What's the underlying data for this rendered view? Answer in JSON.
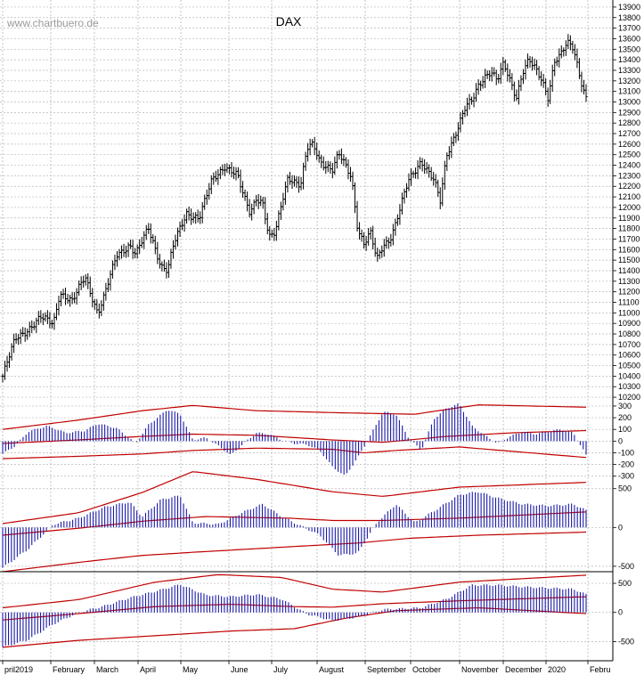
{
  "title": "DAX",
  "watermark": "www.chartbuero.de",
  "colors": {
    "price": "#000000",
    "histogram": "#1a1aa8",
    "band": "#c00000",
    "grid": "#b8b8b8"
  },
  "chart_data": [
    {
      "type": "ohlc",
      "name": "DAX",
      "ylim": [
        10150,
        13950
      ],
      "yticks": [
        10200,
        10300,
        10400,
        10500,
        10600,
        10700,
        10800,
        10900,
        11000,
        11100,
        11200,
        11300,
        11400,
        11500,
        11600,
        11700,
        11800,
        11900,
        12000,
        12100,
        12200,
        12300,
        12400,
        12500,
        12600,
        12700,
        12800,
        12900,
        13000,
        13100,
        13200,
        13300,
        13400,
        13500,
        13600,
        13700,
        13800,
        13900
      ],
      "months": [
        "pril2019",
        "February",
        "March",
        "April",
        "May",
        "June",
        "July",
        "August",
        "September",
        "October",
        "November",
        "December",
        "2020",
        "Febru"
      ],
      "close_points": [
        [
          0,
          10400
        ],
        [
          2,
          10750
        ],
        [
          4,
          10850
        ],
        [
          6,
          10950
        ],
        [
          8,
          10900
        ],
        [
          9,
          11200
        ],
        [
          11,
          11100
        ],
        [
          13,
          11350
        ],
        [
          15,
          11000
        ],
        [
          16,
          11150
        ],
        [
          18,
          11550
        ],
        [
          20,
          11650
        ],
        [
          21,
          11550
        ],
        [
          23,
          11800
        ],
        [
          25,
          11450
        ],
        [
          26,
          11400
        ],
        [
          27,
          11650
        ],
        [
          29,
          11950
        ],
        [
          31,
          11900
        ],
        [
          33,
          12250
        ],
        [
          35,
          12400
        ],
        [
          36,
          12350
        ],
        [
          37,
          12300
        ],
        [
          38,
          12100
        ],
        [
          39,
          11950
        ],
        [
          40,
          12100
        ],
        [
          41,
          12050
        ],
        [
          42,
          11700
        ],
        [
          43,
          11750
        ],
        [
          44,
          12050
        ],
        [
          45,
          12300
        ],
        [
          47,
          12200
        ],
        [
          48,
          12550
        ],
        [
          49,
          12600
        ],
        [
          50,
          12450
        ],
        [
          52,
          12350
        ],
        [
          53,
          12500
        ],
        [
          54,
          12400
        ],
        [
          55,
          12300
        ],
        [
          56,
          11800
        ],
        [
          57,
          11650
        ],
        [
          58,
          11750
        ],
        [
          59,
          11500
        ],
        [
          60,
          11650
        ],
        [
          61,
          11700
        ],
        [
          62,
          11850
        ],
        [
          63,
          12050
        ],
        [
          64,
          12250
        ],
        [
          65,
          12350
        ],
        [
          66,
          12450
        ],
        [
          67,
          12350
        ],
        [
          68,
          12250
        ],
        [
          69,
          12050
        ],
        [
          70,
          12500
        ],
        [
          71,
          12650
        ],
        [
          72,
          12800
        ],
        [
          73,
          12950
        ],
        [
          74,
          13000
        ],
        [
          75,
          13150
        ],
        [
          76,
          13250
        ],
        [
          77,
          13300
        ],
        [
          78,
          13200
        ],
        [
          79,
          13350
        ],
        [
          80,
          13200
        ],
        [
          81,
          13050
        ],
        [
          82,
          13300
        ],
        [
          83,
          13400
        ],
        [
          84,
          13300
        ],
        [
          85,
          13200
        ],
        [
          86,
          13050
        ],
        [
          87,
          13400
        ],
        [
          88,
          13450
        ],
        [
          89,
          13550
        ],
        [
          90,
          13500
        ],
        [
          91,
          13250
        ],
        [
          92,
          13050
        ]
      ]
    },
    {
      "type": "histogram",
      "name": "oscillator-1",
      "ylim": [
        -340,
        330
      ],
      "yticks": [
        300,
        200,
        100,
        0,
        -100,
        -200,
        -300
      ],
      "band_upper": [
        [
          0,
          100
        ],
        [
          12,
          180
        ],
        [
          22,
          260
        ],
        [
          30,
          305
        ],
        [
          40,
          260
        ],
        [
          55,
          240
        ],
        [
          65,
          230
        ],
        [
          75,
          310
        ],
        [
          92,
          290
        ]
      ],
      "band_mid": [
        [
          0,
          -20
        ],
        [
          12,
          10
        ],
        [
          22,
          40
        ],
        [
          30,
          60
        ],
        [
          40,
          50
        ],
        [
          52,
          10
        ],
        [
          60,
          -10
        ],
        [
          70,
          40
        ],
        [
          80,
          70
        ],
        [
          92,
          90
        ]
      ],
      "band_lower": [
        [
          0,
          -150
        ],
        [
          12,
          -130
        ],
        [
          22,
          -110
        ],
        [
          30,
          -80
        ],
        [
          40,
          -60
        ],
        [
          52,
          -70
        ],
        [
          57,
          -100
        ],
        [
          62,
          -80
        ],
        [
          72,
          -50
        ],
        [
          92,
          -140
        ]
      ],
      "histogram_points": [
        [
          0,
          -110
        ],
        [
          2,
          -40
        ],
        [
          4,
          80
        ],
        [
          7,
          130
        ],
        [
          10,
          70
        ],
        [
          13,
          90
        ],
        [
          15,
          150
        ],
        [
          18,
          110
        ],
        [
          21,
          -20
        ],
        [
          23,
          140
        ],
        [
          26,
          270
        ],
        [
          28,
          230
        ],
        [
          30,
          10
        ],
        [
          32,
          30
        ],
        [
          34,
          -40
        ],
        [
          36,
          -120
        ],
        [
          38,
          -20
        ],
        [
          40,
          70
        ],
        [
          42,
          60
        ],
        [
          44,
          10
        ],
        [
          46,
          -20
        ],
        [
          48,
          -30
        ],
        [
          50,
          -80
        ],
        [
          52,
          -220
        ],
        [
          54,
          -300
        ],
        [
          56,
          -140
        ],
        [
          58,
          50
        ],
        [
          60,
          250
        ],
        [
          62,
          230
        ],
        [
          64,
          30
        ],
        [
          66,
          -80
        ],
        [
          68,
          190
        ],
        [
          70,
          280
        ],
        [
          72,
          320
        ],
        [
          74,
          130
        ],
        [
          76,
          50
        ],
        [
          78,
          -20
        ],
        [
          80,
          40
        ],
        [
          82,
          80
        ],
        [
          84,
          60
        ],
        [
          86,
          80
        ],
        [
          88,
          100
        ],
        [
          90,
          70
        ],
        [
          92,
          -120
        ]
      ]
    },
    {
      "type": "histogram",
      "name": "oscillator-2",
      "ylim": [
        -570,
        600
      ],
      "yticks": [
        500,
        0,
        -500
      ],
      "band_upper": [
        [
          0,
          50
        ],
        [
          12,
          190
        ],
        [
          22,
          450
        ],
        [
          30,
          720
        ],
        [
          40,
          620
        ],
        [
          52,
          460
        ],
        [
          60,
          400
        ],
        [
          72,
          520
        ],
        [
          92,
          580
        ]
      ],
      "band_mid": [
        [
          0,
          -100
        ],
        [
          12,
          -10
        ],
        [
          22,
          80
        ],
        [
          32,
          140
        ],
        [
          45,
          120
        ],
        [
          52,
          90
        ],
        [
          60,
          90
        ],
        [
          72,
          120
        ],
        [
          92,
          200
        ]
      ],
      "band_lower": [
        [
          0,
          -570
        ],
        [
          12,
          -450
        ],
        [
          22,
          -360
        ],
        [
          30,
          -320
        ],
        [
          45,
          -250
        ],
        [
          56,
          -200
        ],
        [
          64,
          -140
        ],
        [
          75,
          -100
        ],
        [
          92,
          -60
        ]
      ],
      "histogram_points": [
        [
          0,
          -520
        ],
        [
          4,
          -280
        ],
        [
          8,
          40
        ],
        [
          12,
          120
        ],
        [
          16,
          260
        ],
        [
          20,
          330
        ],
        [
          22,
          140
        ],
        [
          25,
          360
        ],
        [
          28,
          410
        ],
        [
          30,
          60
        ],
        [
          34,
          40
        ],
        [
          38,
          200
        ],
        [
          41,
          300
        ],
        [
          44,
          140
        ],
        [
          47,
          20
        ],
        [
          50,
          -100
        ],
        [
          53,
          -360
        ],
        [
          56,
          -330
        ],
        [
          59,
          60
        ],
        [
          62,
          300
        ],
        [
          65,
          60
        ],
        [
          68,
          210
        ],
        [
          72,
          420
        ],
        [
          75,
          460
        ],
        [
          78,
          380
        ],
        [
          82,
          300
        ],
        [
          86,
          280
        ],
        [
          90,
          300
        ],
        [
          92,
          220
        ]
      ]
    },
    {
      "type": "histogram",
      "name": "oscillator-3",
      "ylim": [
        -800,
        700
      ],
      "yticks": [
        500,
        0,
        -500
      ],
      "band_upper": [
        [
          0,
          80
        ],
        [
          12,
          220
        ],
        [
          24,
          520
        ],
        [
          34,
          650
        ],
        [
          44,
          600
        ],
        [
          52,
          400
        ],
        [
          60,
          350
        ],
        [
          72,
          520
        ],
        [
          92,
          640
        ]
      ],
      "band_mid": [
        [
          0,
          -130
        ],
        [
          12,
          -20
        ],
        [
          24,
          100
        ],
        [
          36,
          140
        ],
        [
          46,
          100
        ],
        [
          52,
          90
        ],
        [
          60,
          150
        ],
        [
          72,
          200
        ],
        [
          92,
          270
        ]
      ],
      "band_lower": [
        [
          0,
          -600
        ],
        [
          12,
          -480
        ],
        [
          24,
          -400
        ],
        [
          36,
          -320
        ],
        [
          46,
          -280
        ],
        [
          54,
          -100
        ],
        [
          62,
          30
        ],
        [
          75,
          80
        ],
        [
          92,
          -20
        ]
      ],
      "histogram_points": [
        [
          0,
          -600
        ],
        [
          4,
          -470
        ],
        [
          8,
          -200
        ],
        [
          12,
          0
        ],
        [
          16,
          110
        ],
        [
          20,
          250
        ],
        [
          24,
          360
        ],
        [
          28,
          480
        ],
        [
          32,
          300
        ],
        [
          36,
          270
        ],
        [
          40,
          310
        ],
        [
          44,
          230
        ],
        [
          48,
          -30
        ],
        [
          52,
          -140
        ],
        [
          56,
          -80
        ],
        [
          60,
          50
        ],
        [
          66,
          80
        ],
        [
          70,
          230
        ],
        [
          74,
          470
        ],
        [
          78,
          470
        ],
        [
          82,
          440
        ],
        [
          86,
          420
        ],
        [
          90,
          400
        ],
        [
          92,
          310
        ]
      ]
    }
  ]
}
